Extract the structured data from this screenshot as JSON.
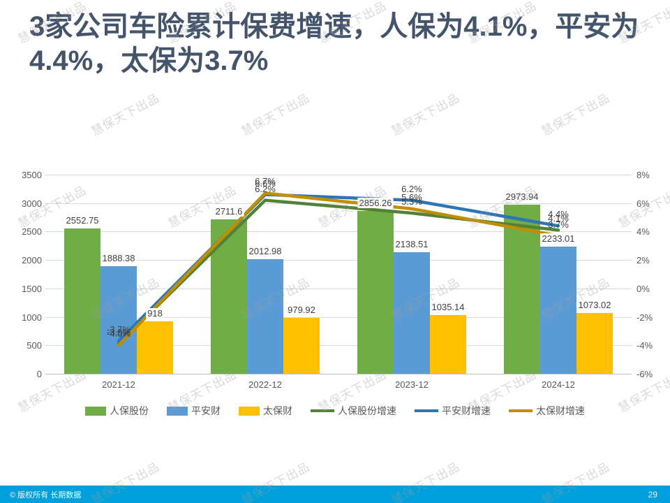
{
  "slide": {
    "title": "3家公司车险累计保费增速，人保为4.1%，平安为4.4%，太保为3.7%",
    "page_number": "29",
    "footer_text": "© 版权所有 长期数据",
    "watermark_text": "慧保天下出品",
    "title_color": "#44546A",
    "footer_color": "#00A0DC"
  },
  "chart_data": {
    "type": "bar",
    "subtype": "bar+line combo, dual axis",
    "categories": [
      "2021-12",
      "2022-12",
      "2023-12",
      "2024-12"
    ],
    "bar_series": [
      {
        "name": "人保股份",
        "color": "#70AD47",
        "axis": "left",
        "values": [
          2552.75,
          2711.6,
          2856.26,
          2973.94
        ],
        "labels": [
          "2552.75",
          "2711.6",
          "2856.26",
          "2973.94"
        ]
      },
      {
        "name": "平安财",
        "color": "#5B9BD5",
        "axis": "left",
        "values": [
          1888.38,
          2012.98,
          2138.51,
          2233.01
        ],
        "labels": [
          "1888.38",
          "2012.98",
          "2138.51",
          "2233.01"
        ]
      },
      {
        "name": "太保财",
        "color": "#FFC000",
        "axis": "left",
        "values": [
          918,
          979.92,
          1035.14,
          1073.02
        ],
        "labels": [
          "918",
          "979.92",
          "1035.14",
          "1073.02"
        ]
      }
    ],
    "line_series": [
      {
        "name": "人保股份增速",
        "color": "#538135",
        "axis": "right",
        "values_pct": [
          -3.9,
          6.2,
          5.3,
          4.1
        ],
        "labels": [
          "-3.9%",
          "6.2%",
          "5.3%",
          "4.1%"
        ]
      },
      {
        "name": "平安财增速",
        "color": "#2E75B6",
        "axis": "right",
        "values_pct": [
          -3.7,
          6.6,
          6.2,
          4.4
        ],
        "labels": [
          "-3.7%",
          "6.6%",
          "6.2%",
          "4.4%"
        ]
      },
      {
        "name": "太保财增速",
        "color": "#BF8F00",
        "axis": "right",
        "values_pct": [
          -4.0,
          6.7,
          5.6,
          3.7
        ],
        "labels": [
          "-4.0%",
          "6.7%",
          "5.6%",
          "3.7%"
        ]
      }
    ],
    "left_axis": {
      "min": 0,
      "max": 3500,
      "ticks": [
        "3500",
        "3000",
        "2500",
        "2000",
        "1500",
        "1000",
        "500",
        "0"
      ]
    },
    "right_axis": {
      "min": -6,
      "max": 8,
      "ticks": [
        "8%",
        "6%",
        "4%",
        "2%",
        "0%",
        "-2%",
        "-4%",
        "-6%"
      ]
    },
    "grid": true,
    "legend_position": "bottom"
  }
}
